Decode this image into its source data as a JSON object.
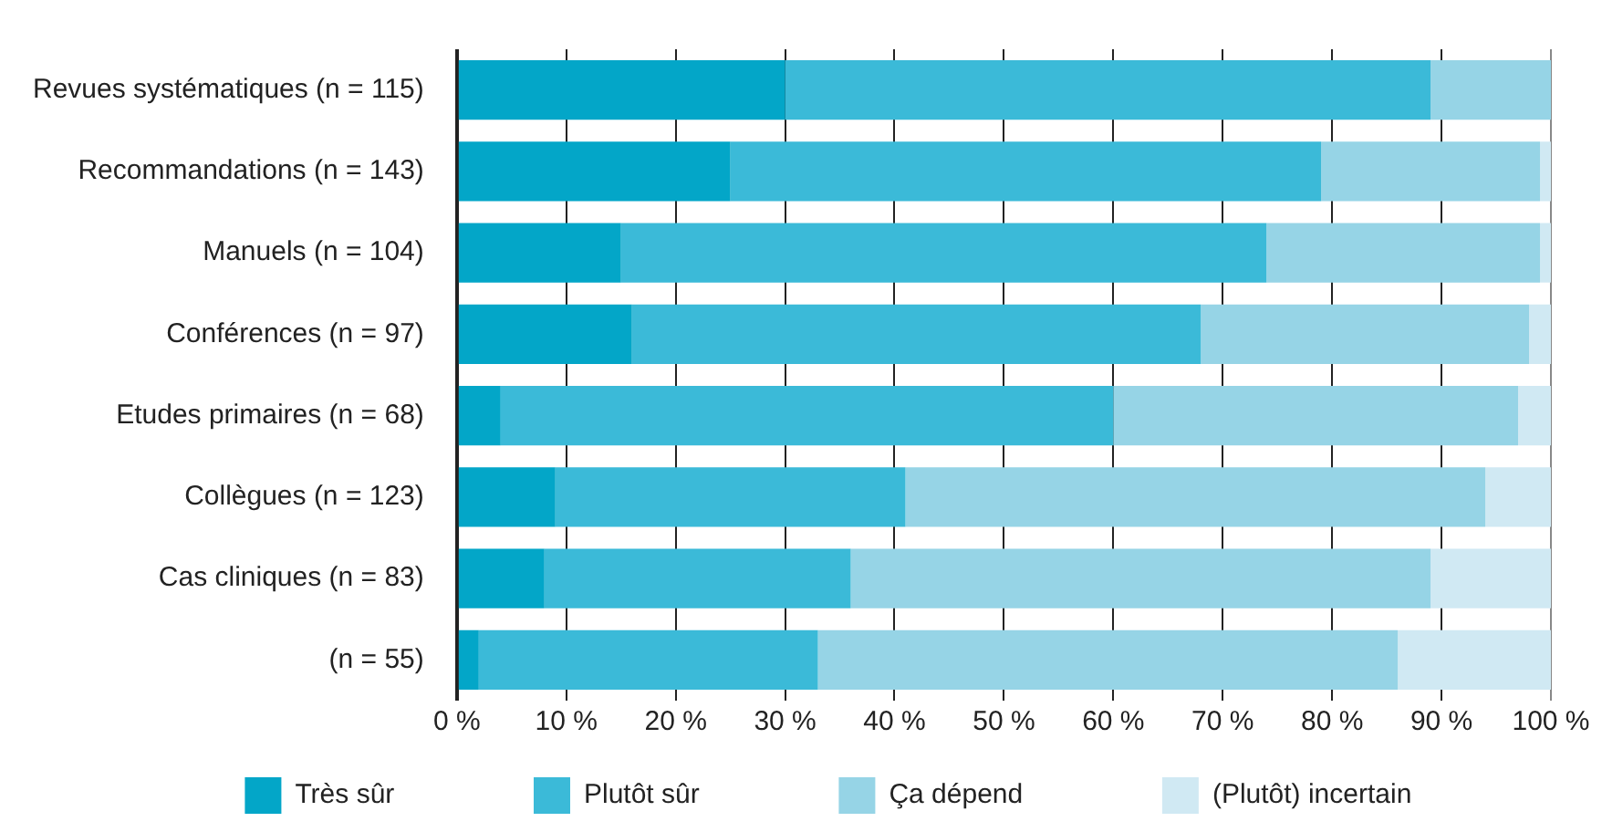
{
  "chart_data": {
    "type": "bar",
    "orientation": "horizontal",
    "stacked": true,
    "categories": [
      "Revues systématiques (n = 115)",
      "Recommandations (n = 143)",
      "Manuels (n = 104)",
      "Conférences (n = 97)",
      "Etudes primaires (n = 68)",
      "Collègues (n = 123)",
      "Cas cliniques (n = 83)",
      "(n = 55)"
    ],
    "series": [
      {
        "name": "Très sûr",
        "color": "#03a6c8",
        "values": [
          30,
          25,
          15,
          16,
          4,
          9,
          8,
          2
        ]
      },
      {
        "name": "Plutôt sûr",
        "color": "#3bbad8",
        "values": [
          59,
          54,
          59,
          52,
          56,
          32,
          28,
          31
        ]
      },
      {
        "name": "Ça dépend",
        "color": "#96d4e6",
        "values": [
          11,
          20,
          25,
          30,
          37,
          53,
          53,
          53
        ]
      },
      {
        "name": "(Plutôt) incertain",
        "color": "#d0e9f3",
        "values": [
          0,
          1,
          1,
          2,
          3,
          6,
          11,
          14
        ]
      }
    ],
    "xlim": [
      0,
      100
    ],
    "xticks": [
      {
        "value": 0,
        "label": "0 %"
      },
      {
        "value": 10,
        "label": "10 %"
      },
      {
        "value": 20,
        "label": "20 %"
      },
      {
        "value": 30,
        "label": "30 %"
      },
      {
        "value": 40,
        "label": "40 %"
      },
      {
        "value": 50,
        "label": "50 %"
      },
      {
        "value": 60,
        "label": "60 %"
      },
      {
        "value": 70,
        "label": "70 %"
      },
      {
        "value": 80,
        "label": "80 %"
      },
      {
        "value": 90,
        "label": "90 %"
      },
      {
        "value": 100,
        "label": "100 %"
      }
    ],
    "grid": "x",
    "legend": "bottom"
  }
}
